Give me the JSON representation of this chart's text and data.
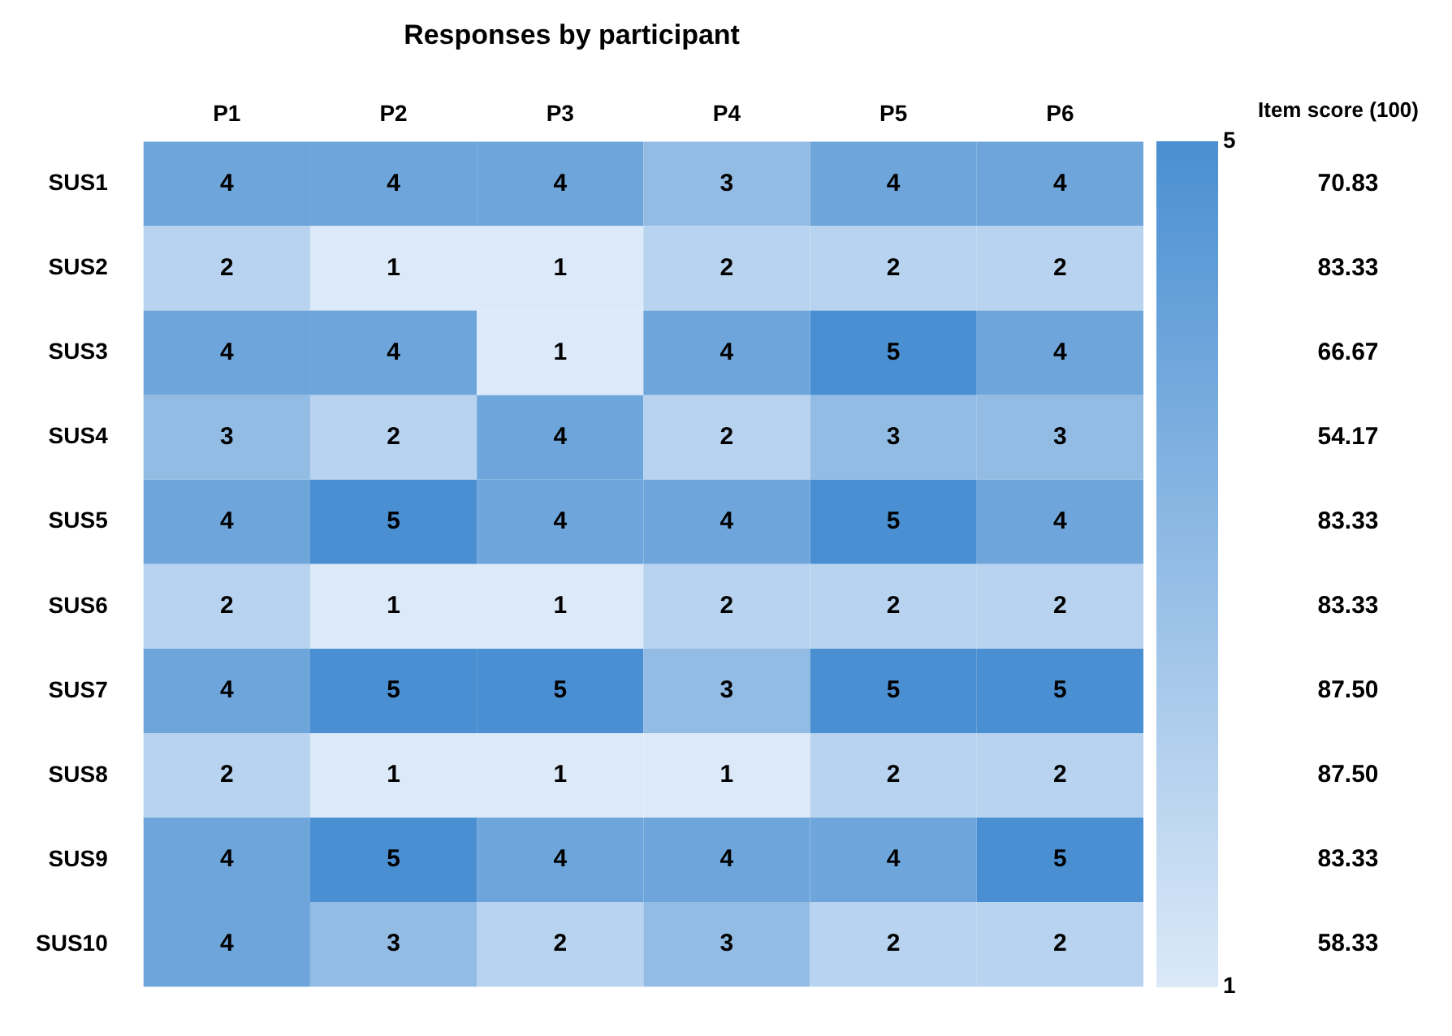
{
  "chart_data": {
    "type": "heatmap",
    "title": "Responses by participant",
    "annotations": [
      "Item score (100)"
    ],
    "categories": [
      "P1",
      "P2",
      "P3",
      "P4",
      "P5",
      "P6"
    ],
    "y_categories": [
      "SUS1",
      "SUS2",
      "SUS3",
      "SUS4",
      "SUS5",
      "SUS6",
      "SUS7",
      "SUS8",
      "SUS9",
      "SUS10"
    ],
    "y2_categories": [
      "70.83",
      "83.33",
      "66.67",
      "54.17",
      "83.33",
      "83.33",
      "87.50",
      "87.50",
      "83.33",
      "58.33"
    ],
    "cells": [
      [
        4,
        4,
        4,
        3,
        4,
        4
      ],
      [
        2,
        1,
        1,
        2,
        2,
        2
      ],
      [
        4,
        4,
        1,
        4,
        5,
        4
      ],
      [
        3,
        2,
        4,
        2,
        3,
        3
      ],
      [
        4,
        5,
        4,
        4,
        5,
        4
      ],
      [
        2,
        1,
        1,
        2,
        2,
        2
      ],
      [
        4,
        5,
        5,
        3,
        5,
        5
      ],
      [
        2,
        1,
        1,
        1,
        2,
        2
      ],
      [
        4,
        5,
        4,
        4,
        4,
        5
      ],
      [
        4,
        3,
        2,
        3,
        2,
        2
      ]
    ],
    "data_labels": true,
    "clim": [
      1,
      5
    ],
    "cticks": [
      1,
      5
    ],
    "grid": false,
    "legend": false
  }
}
